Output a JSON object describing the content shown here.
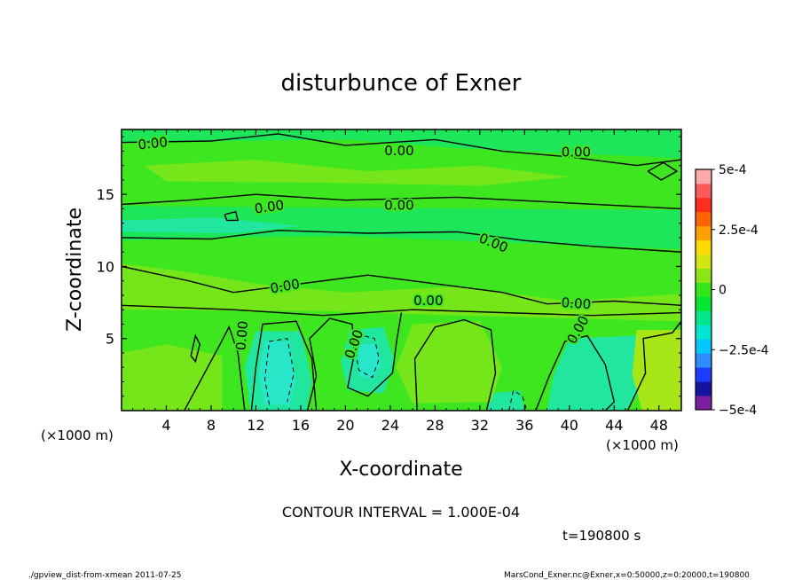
{
  "chart_data": {
    "type": "heatmap",
    "title": "disturbunce of Exner",
    "xlabel": "X-coordinate",
    "ylabel": "Z-coordinate",
    "x_unit": "(×1000 m)",
    "y_unit": "(×1000 m)",
    "xlim": [
      0,
      50
    ],
    "ylim": [
      0,
      19.5
    ],
    "x_ticks": [
      "4",
      "8",
      "12",
      "16",
      "20",
      "24",
      "28",
      "32",
      "36",
      "40",
      "44",
      "48"
    ],
    "x_tick_values": [
      4,
      8,
      12,
      16,
      20,
      24,
      28,
      32,
      36,
      40,
      44,
      48
    ],
    "y_ticks": [
      "5",
      "10",
      "15"
    ],
    "y_tick_values": [
      5,
      10,
      15
    ],
    "contour_interval_text": "CONTOUR INTERVAL = 1.000E-04",
    "contour_labels": [
      "0.00",
      "0.00",
      "0.00",
      "0.00",
      "0.00",
      "0.00",
      "0.00",
      "0.00",
      "0.00",
      "0.00",
      "0.00",
      "0.00"
    ],
    "colorbar": {
      "range": [
        -0.0005,
        0.0005
      ],
      "tick_labels": [
        "5e-4",
        "2.5e-4",
        "0",
        "−2.5e-4",
        "−5e-4"
      ],
      "tick_values": [
        0.0005,
        0.00025,
        0,
        -0.00025,
        -0.0005
      ],
      "colors": [
        "#7a1fa0",
        "#1414a0",
        "#1e3cff",
        "#2d8cff",
        "#00c8ff",
        "#00e6d2",
        "#00e68c",
        "#00e633",
        "#33e61a",
        "#8ce614",
        "#d2e614",
        "#ffdc00",
        "#ffa000",
        "#ff6400",
        "#ff2d1e",
        "#ff5a5a",
        "#ffaaaa"
      ]
    },
    "field_colors": {
      "background": "#3de61e",
      "near_zero_negative": "#1ee65a",
      "negative": "#20e6a0",
      "strong_negative": "#28e6c8",
      "positive": "#74e61a",
      "strong_positive": "#a6e616"
    }
  },
  "time_text": "t=190800 s",
  "footer": {
    "left": "./gpview_dist-from-xmean   2011-07-25",
    "right": "MarsCond_Exner.nc@Exner,x=0:50000,z=0:20000,t=190800"
  }
}
